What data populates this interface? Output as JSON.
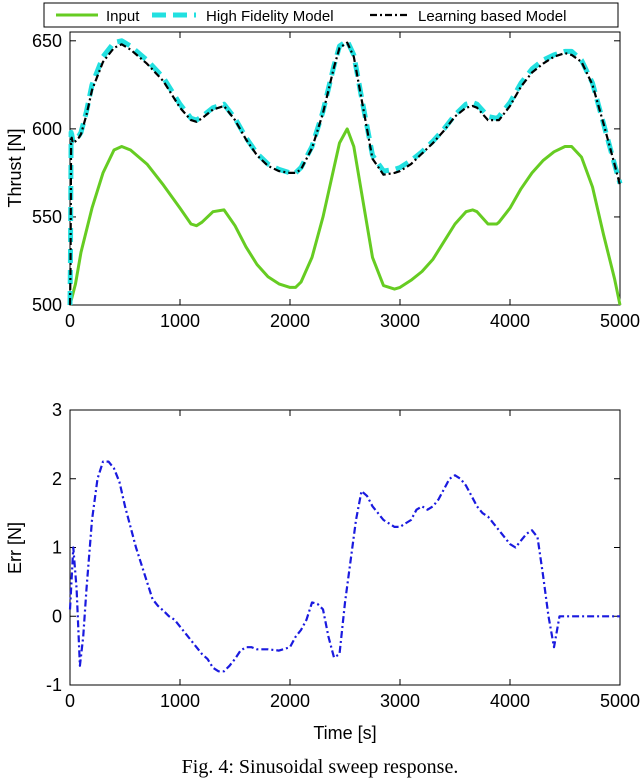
{
  "caption": "Fig. 4: Sinusoidal sweep response.",
  "chart_data": [
    {
      "type": "line",
      "title": "",
      "xlabel": "",
      "ylabel": "Thrust [N]",
      "xlim": [
        0,
        5000
      ],
      "ylim": [
        500,
        655
      ],
      "xticks": [
        0,
        1000,
        2000,
        3000,
        4000,
        5000
      ],
      "yticks": [
        500,
        550,
        600,
        650
      ],
      "grid": false,
      "legend_placement": "top, outside",
      "series": [
        {
          "name": "Input",
          "color": "#66cc22",
          "style": "solid",
          "x": [
            0,
            50,
            100,
            200,
            300,
            400,
            470,
            550,
            700,
            850,
            1000,
            1100,
            1150,
            1200,
            1300,
            1400,
            1500,
            1600,
            1700,
            1800,
            1900,
            2000,
            2050,
            2100,
            2200,
            2300,
            2400,
            2450,
            2520,
            2580,
            2650,
            2750,
            2850,
            2950,
            3000,
            3100,
            3200,
            3300,
            3400,
            3500,
            3600,
            3660,
            3700,
            3800,
            3880,
            3900,
            4000,
            4100,
            4200,
            4300,
            4400,
            4500,
            4560,
            4650,
            4750,
            4850,
            4950,
            5000
          ],
          "values": [
            500,
            512,
            530,
            555,
            575,
            588,
            590,
            588,
            580,
            568,
            555,
            546,
            545,
            547,
            553,
            554,
            545,
            533,
            523,
            516,
            512,
            510,
            510,
            513,
            527,
            550,
            578,
            592,
            600,
            590,
            564,
            527,
            511,
            509,
            510,
            514,
            519,
            526,
            536,
            546,
            553,
            554,
            553,
            546,
            546,
            547,
            555,
            566,
            575,
            582,
            587,
            590,
            590,
            584,
            567,
            540,
            515,
            500
          ]
        },
        {
          "name": "High Fidelity Model",
          "color": "#22e0e0",
          "style": "dashed",
          "x": [
            0,
            5,
            10,
            15,
            25,
            50,
            80,
            100,
            150,
            200,
            300,
            400,
            470,
            550,
            700,
            850,
            1000,
            1100,
            1150,
            1200,
            1300,
            1400,
            1500,
            1600,
            1700,
            1800,
            1900,
            2000,
            2050,
            2100,
            2200,
            2300,
            2400,
            2450,
            2520,
            2580,
            2650,
            2750,
            2850,
            2950,
            3000,
            3100,
            3200,
            3300,
            3400,
            3500,
            3600,
            3660,
            3700,
            3800,
            3880,
            3900,
            4000,
            4100,
            4200,
            4300,
            4400,
            4500,
            4560,
            4650,
            4750,
            4850,
            4950,
            5000
          ],
          "values": [
            500,
            530,
            598,
            597,
            593,
            594,
            596,
            598,
            610,
            625,
            641,
            649,
            650,
            647,
            639,
            629,
            614,
            606,
            605,
            607,
            612,
            614,
            606,
            595,
            586,
            580,
            577,
            575,
            575,
            578,
            590,
            610,
            636,
            647,
            650,
            642,
            618,
            585,
            576,
            577,
            578,
            582,
            587,
            593,
            600,
            608,
            614,
            615,
            614,
            607,
            606,
            607,
            615,
            626,
            634,
            639,
            642,
            644,
            644,
            639,
            626,
            603,
            580,
            569
          ]
        },
        {
          "name": "Learning based Model",
          "color": "#000000",
          "style": "dashdot",
          "x": [
            0,
            5,
            10,
            15,
            25,
            50,
            80,
            100,
            150,
            200,
            300,
            400,
            470,
            550,
            700,
            850,
            1000,
            1100,
            1150,
            1200,
            1300,
            1400,
            1500,
            1600,
            1700,
            1800,
            1900,
            2000,
            2050,
            2100,
            2200,
            2300,
            2400,
            2450,
            2520,
            2580,
            2650,
            2750,
            2850,
            2950,
            3000,
            3100,
            3200,
            3300,
            3400,
            3500,
            3600,
            3660,
            3700,
            3800,
            3880,
            3900,
            4000,
            4100,
            4200,
            4300,
            4400,
            4500,
            4560,
            4650,
            4750,
            4850,
            4950,
            5000
          ],
          "values": [
            500,
            520,
            594,
            595,
            592,
            593,
            595,
            597,
            608,
            622,
            638,
            646,
            648,
            645,
            637,
            627,
            612,
            605,
            604,
            606,
            611,
            613,
            605,
            594,
            585,
            579,
            576,
            575,
            575,
            577,
            589,
            609,
            635,
            646,
            649,
            641,
            617,
            583,
            574,
            575,
            576,
            580,
            586,
            592,
            599,
            607,
            612,
            613,
            612,
            605,
            605,
            605,
            613,
            624,
            632,
            637,
            641,
            643,
            642,
            638,
            625,
            603,
            580,
            568
          ]
        }
      ]
    },
    {
      "type": "line",
      "title": "",
      "xlabel": "Time [s]",
      "ylabel": "Err [N]",
      "xlim": [
        0,
        5000
      ],
      "ylim": [
        -1,
        3
      ],
      "xticks": [
        0,
        1000,
        2000,
        3000,
        4000,
        5000
      ],
      "yticks": [
        -1,
        0,
        1,
        2,
        3
      ],
      "grid": false,
      "series": [
        {
          "color": "#1a1adf",
          "style": "dashdot",
          "x": [
            0,
            30,
            60,
            90,
            120,
            150,
            200,
            250,
            300,
            350,
            400,
            450,
            500,
            550,
            600,
            650,
            700,
            750,
            800,
            850,
            900,
            950,
            1000,
            1050,
            1100,
            1150,
            1200,
            1250,
            1300,
            1350,
            1400,
            1450,
            1500,
            1550,
            1600,
            1650,
            1700,
            1800,
            1900,
            2000,
            2050,
            2100,
            2150,
            2200,
            2250,
            2300,
            2350,
            2400,
            2450,
            2500,
            2550,
            2600,
            2650,
            2700,
            2750,
            2800,
            2850,
            2900,
            2950,
            3000,
            3050,
            3100,
            3150,
            3200,
            3250,
            3300,
            3350,
            3400,
            3450,
            3500,
            3550,
            3600,
            3650,
            3700,
            3750,
            3800,
            3850,
            3900,
            3950,
            4000,
            4050,
            4100,
            4150,
            4200,
            4250,
            4300,
            4350,
            4400,
            4450,
            4500,
            4550,
            4600,
            4650,
            4700,
            4750,
            4800,
            4850,
            4900,
            4950,
            5000
          ],
          "values": [
            0.1,
            1.0,
            0.4,
            -0.72,
            -0.3,
            0.4,
            1.4,
            2.0,
            2.25,
            2.25,
            2.15,
            1.95,
            1.6,
            1.3,
            1.0,
            0.75,
            0.5,
            0.25,
            0.15,
            0.08,
            0.0,
            -0.05,
            -0.15,
            -0.25,
            -0.35,
            -0.45,
            -0.55,
            -0.62,
            -0.75,
            -0.8,
            -0.8,
            -0.72,
            -0.62,
            -0.5,
            -0.45,
            -0.45,
            -0.48,
            -0.48,
            -0.5,
            -0.45,
            -0.3,
            -0.2,
            -0.05,
            0.2,
            0.18,
            0.1,
            -0.3,
            -0.6,
            -0.55,
            0.2,
            0.8,
            1.4,
            1.82,
            1.75,
            1.6,
            1.5,
            1.4,
            1.35,
            1.3,
            1.3,
            1.35,
            1.4,
            1.55,
            1.6,
            1.55,
            1.6,
            1.7,
            1.85,
            2.0,
            2.05,
            2.0,
            1.9,
            1.75,
            1.6,
            1.5,
            1.45,
            1.35,
            1.25,
            1.15,
            1.05,
            1.0,
            1.1,
            1.2,
            1.25,
            1.15,
            0.6,
            0.0,
            -0.45,
            0.0,
            0.0,
            0.0,
            0.0,
            0.0,
            0.0,
            0.0,
            0.0,
            0.0,
            0.0,
            0.0,
            0.0
          ]
        }
      ]
    }
  ]
}
